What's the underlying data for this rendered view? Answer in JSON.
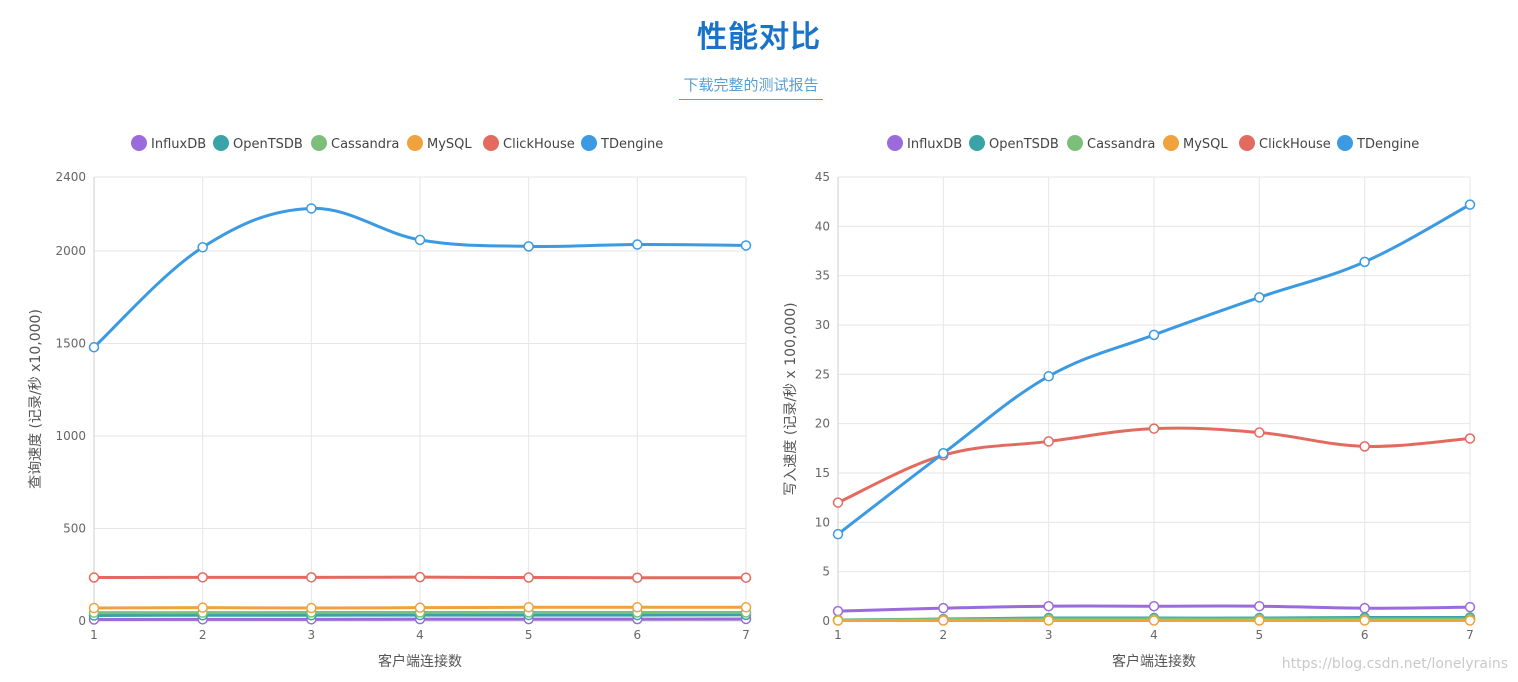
{
  "header": {
    "title": "性能对比",
    "report_link": "下载完整的测试报告"
  },
  "watermark": "https://blog.csdn.net/lonelyrains",
  "series_colors": {
    "InfluxDB": "#9b6bdb",
    "OpenTSDB": "#3aa3a8",
    "Cassandra": "#7dbf7a",
    "MySQL": "#f0a23c",
    "ClickHouse": "#e36a5f",
    "TDengine": "#3b9ae1"
  },
  "chart_data": [
    {
      "type": "line",
      "x": [
        1,
        2,
        3,
        4,
        5,
        6,
        7
      ],
      "xlabel": "客户端连接数",
      "ylabel": "查询速度 (记录/秒 x10,000)",
      "ylim": [
        0,
        2400
      ],
      "yticks": [
        0,
        500,
        1000,
        1500,
        2000,
        2400
      ],
      "grid": true,
      "legend": "top",
      "series": [
        {
          "name": "InfluxDB",
          "values": [
            8,
            9,
            9,
            10,
            10,
            10,
            11
          ]
        },
        {
          "name": "OpenTSDB",
          "values": [
            30,
            31,
            31,
            32,
            32,
            32,
            33
          ]
        },
        {
          "name": "Cassandra",
          "values": [
            45,
            45,
            46,
            46,
            46,
            46,
            46
          ]
        },
        {
          "name": "MySQL",
          "values": [
            70,
            72,
            70,
            72,
            74,
            74,
            74
          ]
        },
        {
          "name": "ClickHouse",
          "values": [
            235,
            236,
            236,
            237,
            235,
            234,
            234
          ]
        },
        {
          "name": "TDengine",
          "values": [
            1480,
            2020,
            2230,
            2060,
            2025,
            2035,
            2030
          ]
        }
      ]
    },
    {
      "type": "line",
      "x": [
        1,
        2,
        3,
        4,
        5,
        6,
        7
      ],
      "xlabel": "客户端连接数",
      "ylabel": "写入速度 (记录/秒 x 100,000)",
      "ylim": [
        0,
        45
      ],
      "yticks": [
        0,
        5,
        10,
        15,
        20,
        25,
        30,
        35,
        40,
        45
      ],
      "grid": true,
      "legend": "top",
      "series": [
        {
          "name": "InfluxDB",
          "values": [
            1.0,
            1.3,
            1.5,
            1.5,
            1.5,
            1.3,
            1.4
          ]
        },
        {
          "name": "OpenTSDB",
          "values": [
            0.1,
            0.2,
            0.3,
            0.3,
            0.3,
            0.35,
            0.35
          ]
        },
        {
          "name": "Cassandra",
          "values": [
            0.1,
            0.15,
            0.2,
            0.2,
            0.2,
            0.2,
            0.2
          ]
        },
        {
          "name": "MySQL",
          "values": [
            0.05,
            0.05,
            0.05,
            0.05,
            0.05,
            0.05,
            0.05
          ]
        },
        {
          "name": "ClickHouse",
          "values": [
            12.0,
            16.8,
            18.2,
            19.5,
            19.1,
            17.7,
            18.5
          ]
        },
        {
          "name": "TDengine",
          "values": [
            8.8,
            17.0,
            24.8,
            29.0,
            32.8,
            36.4,
            42.2
          ]
        }
      ]
    }
  ]
}
